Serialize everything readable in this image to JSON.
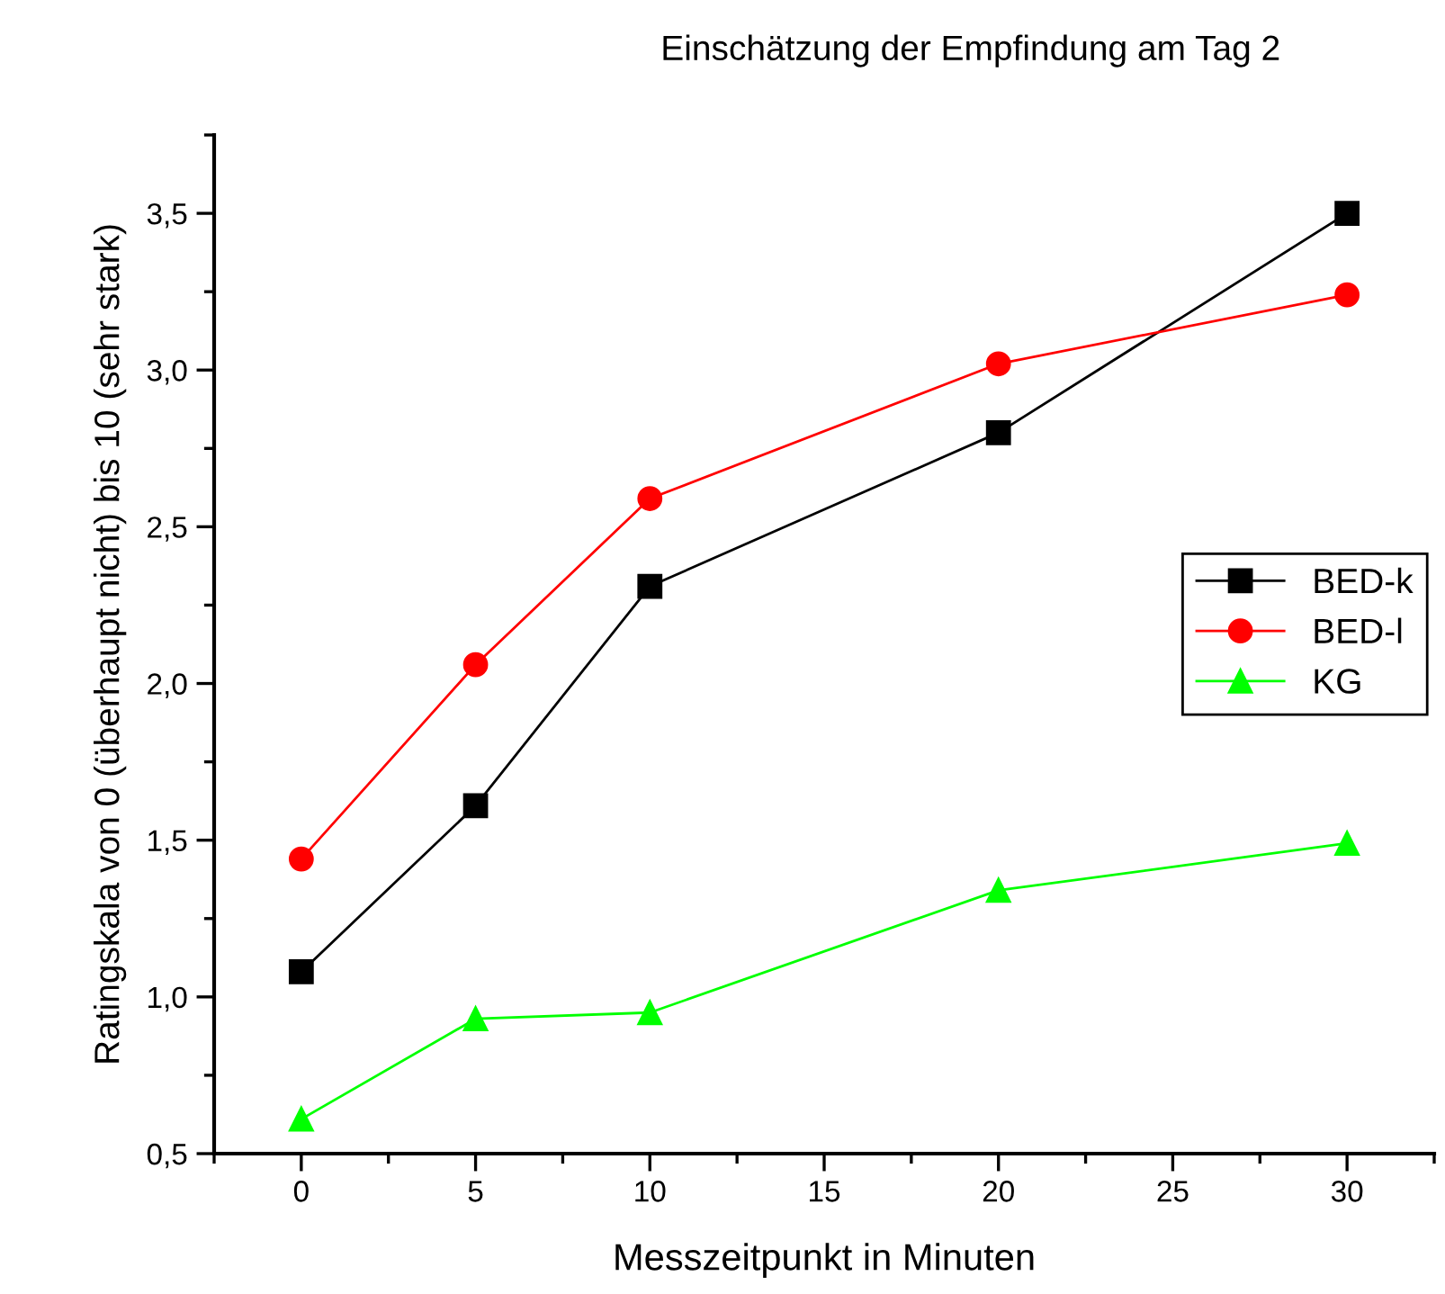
{
  "chart_data": {
    "type": "line",
    "title": "Einschätzung der Empfindung am Tag 2",
    "xlabel": "Messzeitpunkt in Minuten",
    "ylabel": "Ratingskala von 0 (überhaupt nicht) bis 10 (sehr stark)",
    "x": [
      0,
      5,
      10,
      20,
      30
    ],
    "series": [
      {
        "name": "BED-k",
        "color": "#000000",
        "marker": "square",
        "values": [
          1.08,
          1.61,
          2.31,
          2.8,
          3.5
        ]
      },
      {
        "name": "BED-l",
        "color": "#ff0000",
        "marker": "circle",
        "values": [
          1.44,
          2.06,
          2.59,
          3.02,
          3.24
        ]
      },
      {
        "name": "KG",
        "color": "#00ff00",
        "marker": "triangle",
        "values": [
          0.61,
          0.93,
          0.95,
          1.34,
          1.49
        ]
      }
    ],
    "xlim": [
      -2.5,
      32.5
    ],
    "xticks": [
      0,
      5,
      10,
      15,
      20,
      25,
      30
    ],
    "ylim": [
      0.5,
      3.75
    ],
    "yticks": [
      {
        "value": 0.5,
        "label": "0,5"
      },
      {
        "value": 1.0,
        "label": "1,0"
      },
      {
        "value": 1.5,
        "label": "1,5"
      },
      {
        "value": 2.0,
        "label": "2,0"
      },
      {
        "value": 2.5,
        "label": "2,5"
      },
      {
        "value": 3.0,
        "label": "3,0"
      },
      {
        "value": 3.5,
        "label": "3,5"
      }
    ],
    "grid": false,
    "legend": "center right",
    "line_style": "solid"
  }
}
